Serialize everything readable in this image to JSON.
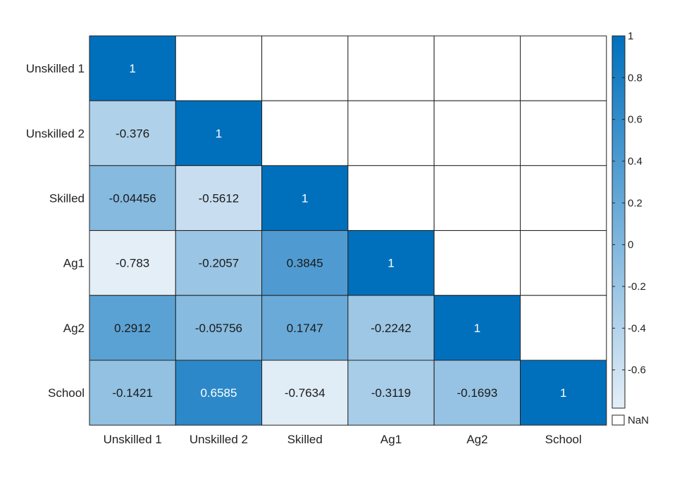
{
  "chart_data": {
    "type": "heatmap",
    "title": "",
    "xlabel": "",
    "ylabel": "",
    "x_labels": [
      "Unskilled 1",
      "Unskilled 2",
      "Skilled",
      "Ag1",
      "Ag2",
      "School"
    ],
    "y_labels": [
      "Unskilled 1",
      "Unskilled 2",
      "Skilled",
      "Ag1",
      "Ag2",
      "School"
    ],
    "cells": [
      [
        1,
        null,
        null,
        null,
        null,
        null
      ],
      [
        -0.376,
        1,
        null,
        null,
        null,
        null
      ],
      [
        -0.04456,
        -0.5612,
        1,
        null,
        null,
        null
      ],
      [
        -0.783,
        -0.2057,
        0.3845,
        1,
        null,
        null
      ],
      [
        0.2912,
        -0.05756,
        0.1747,
        -0.2242,
        1,
        null
      ],
      [
        -0.1421,
        0.6585,
        -0.7634,
        -0.3119,
        -0.1693,
        1
      ]
    ],
    "cell_labels": [
      [
        "1",
        "",
        "",
        "",
        "",
        ""
      ],
      [
        "-0.376",
        "1",
        "",
        "",
        "",
        ""
      ],
      [
        "-0.04456",
        "-0.5612",
        "1",
        "",
        "",
        ""
      ],
      [
        "-0.783",
        "-0.2057",
        "0.3845",
        "1",
        "",
        ""
      ],
      [
        "0.2912",
        "-0.05756",
        "0.1747",
        "-0.2242",
        "1",
        ""
      ],
      [
        "-0.1421",
        "0.6585",
        "-0.7634",
        "-0.3119",
        "-0.1693",
        "1"
      ]
    ],
    "colorbar": {
      "min": -0.783,
      "max": 1,
      "ticks": [
        1,
        0.8,
        0.6,
        0.4,
        0.2,
        0,
        -0.2,
        -0.4,
        -0.6
      ],
      "tick_labels": [
        "1",
        "0.8",
        "0.6",
        "0.4",
        "0.2",
        "0",
        "-0.2",
        "-0.4",
        "-0.6"
      ],
      "low_color": "#e4eef7",
      "high_color": "#0070bd",
      "nan_color": "#ffffff",
      "nan_label": "NaN"
    },
    "colors": {
      "grid": "#222222",
      "text_dark": "#1a1a1a",
      "text_light": "#ffffff",
      "axis_text": "#222222"
    }
  }
}
